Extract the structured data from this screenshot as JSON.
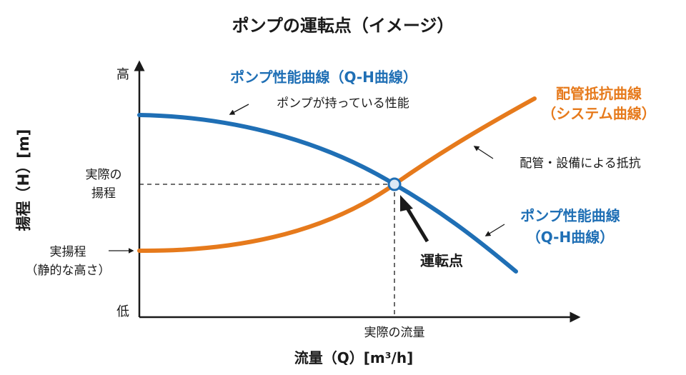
{
  "title": "ポンプの運転点（イメージ）",
  "axes": {
    "y_label": "揚程（H）[m]",
    "x_label": "流量（Q）[m³/h]",
    "y_high": "高",
    "y_low": "低"
  },
  "annotations": {
    "operating_head": [
      "実際の",
      "揚程"
    ],
    "static_head": [
      "実揚程",
      "（静的な高さ）"
    ],
    "operating_flow": "実際の流量",
    "operating_point": "運転点"
  },
  "pump_curve": {
    "title": "ポンプ性能曲線（Q-H曲線）",
    "note": "ポンプが持っている性能",
    "end_label": [
      "ポンプ性能曲線",
      "（Q-H曲線）"
    ]
  },
  "system_curve": {
    "title": [
      "配管抵抗曲線",
      "（システム曲線）"
    ],
    "note": "配管・設備による抵抗"
  },
  "colors": {
    "pump": "#1f6fb5",
    "system": "#e67a1c",
    "text": "#1a1a1a"
  }
}
